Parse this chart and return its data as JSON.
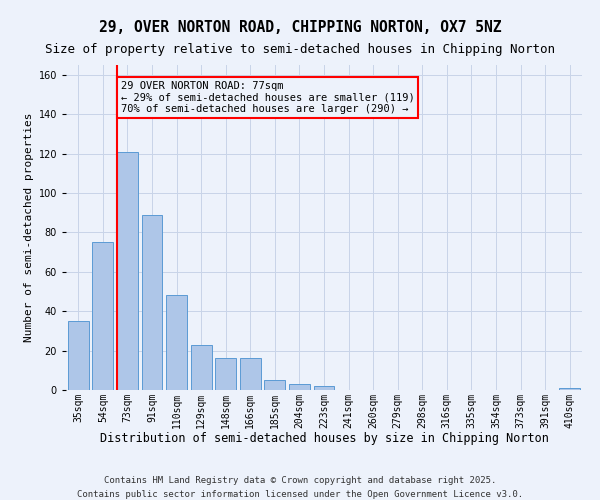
{
  "title": "29, OVER NORTON ROAD, CHIPPING NORTON, OX7 5NZ",
  "subtitle": "Size of property relative to semi-detached houses in Chipping Norton",
  "xlabel": "Distribution of semi-detached houses by size in Chipping Norton",
  "ylabel": "Number of semi-detached properties",
  "categories": [
    "35sqm",
    "54sqm",
    "73sqm",
    "91sqm",
    "110sqm",
    "129sqm",
    "148sqm",
    "166sqm",
    "185sqm",
    "204sqm",
    "223sqm",
    "241sqm",
    "260sqm",
    "279sqm",
    "298sqm",
    "316sqm",
    "335sqm",
    "354sqm",
    "373sqm",
    "391sqm",
    "410sqm"
  ],
  "values": [
    35,
    75,
    121,
    89,
    48,
    23,
    16,
    16,
    5,
    3,
    2,
    0,
    0,
    0,
    0,
    0,
    0,
    0,
    0,
    0,
    1
  ],
  "bar_color": "#aec6e8",
  "bar_edge_color": "#5b9bd5",
  "grid_color": "#c8d4e8",
  "bg_color": "#edf2fb",
  "vline_color": "red",
  "vline_index": 2,
  "annotation_title": "29 OVER NORTON ROAD: 77sqm",
  "annotation_line2": "← 29% of semi-detached houses are smaller (119)",
  "annotation_line3": "70% of semi-detached houses are larger (290) →",
  "annotation_box_color": "red",
  "footnote1": "Contains HM Land Registry data © Crown copyright and database right 2025.",
  "footnote2": "Contains public sector information licensed under the Open Government Licence v3.0.",
  "ylim": [
    0,
    165
  ],
  "yticks": [
    0,
    20,
    40,
    60,
    80,
    100,
    120,
    140,
    160
  ],
  "title_fontsize": 10.5,
  "subtitle_fontsize": 9,
  "xlabel_fontsize": 8.5,
  "ylabel_fontsize": 8,
  "tick_fontsize": 7,
  "annotation_fontsize": 7.5,
  "footnote_fontsize": 6.5
}
